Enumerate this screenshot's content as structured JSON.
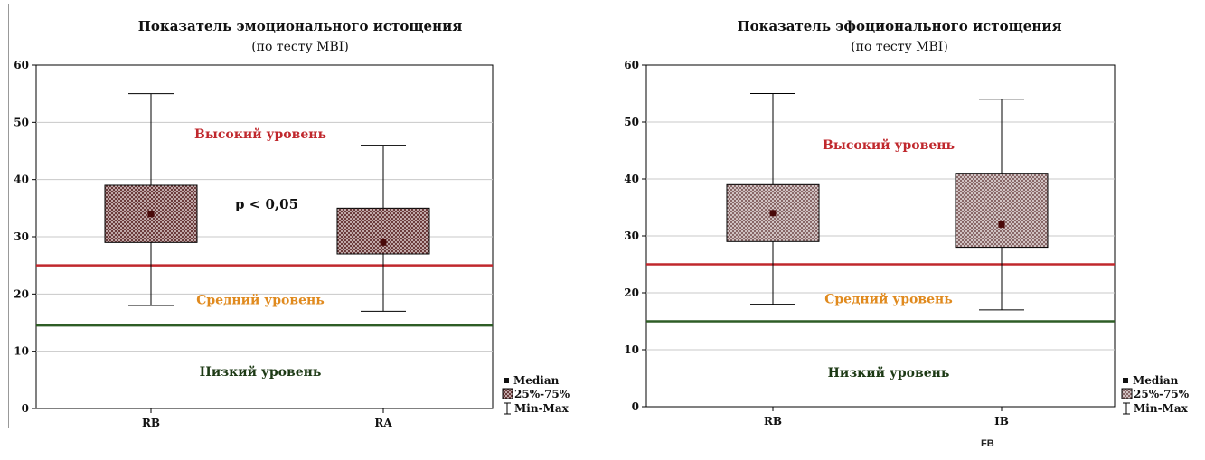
{
  "chart_data": [
    {
      "type": "boxplot",
      "title": "Показатель эмоционального истощения",
      "subtitle": "(по тесту MBI)",
      "categories": [
        "RB",
        "RA"
      ],
      "boxes": [
        {
          "category": "RB",
          "min": 18,
          "q1": 29,
          "median": 34,
          "q3": 39,
          "max": 55
        },
        {
          "category": "RA",
          "min": 17,
          "q1": 27,
          "median": 29,
          "q3": 35,
          "max": 46
        }
      ],
      "ylim": [
        0,
        60
      ],
      "yticks": [
        0,
        10,
        20,
        30,
        40,
        50,
        60
      ],
      "reference_lines": [
        {
          "y": 25,
          "color": "#c0282d"
        },
        {
          "y": 14.5,
          "color": "#2e5d26"
        }
      ],
      "zone_labels": [
        {
          "text": "Высокий уровень",
          "y": 48,
          "color": "#c0282d"
        },
        {
          "text": "Средний уровень",
          "y": 19,
          "color": "#e08a1e"
        },
        {
          "text": "Низкий уровень",
          "y": 6.5,
          "color": "#1d3a15"
        }
      ],
      "annotation": "p < 0,05",
      "legend": [
        "Median",
        "25%-75%",
        "Min-Max"
      ],
      "grid": true
    },
    {
      "type": "boxplot",
      "title": "Показатель эфоционального истощения",
      "subtitle": "(по тесту MBI)",
      "categories": [
        "RB",
        "IB"
      ],
      "boxes": [
        {
          "category": "RB",
          "min": 18,
          "q1": 29,
          "median": 34,
          "q3": 39,
          "max": 55
        },
        {
          "category": "IB",
          "min": 17,
          "q1": 28,
          "median": 32,
          "q3": 41,
          "max": 54
        }
      ],
      "ylim": [
        0,
        60
      ],
      "yticks": [
        0,
        10,
        20,
        30,
        40,
        50,
        60
      ],
      "reference_lines": [
        {
          "y": 25,
          "color": "#c0282d"
        },
        {
          "y": 15,
          "color": "#2e5d26"
        }
      ],
      "zone_labels": [
        {
          "text": "Высокий уровень",
          "y": 46,
          "color": "#c0282d"
        },
        {
          "text": "Средний уровень",
          "y": 19,
          "color": "#e08a1e"
        },
        {
          "text": "Низкий уровень",
          "y": 6,
          "color": "#1d3a15"
        }
      ],
      "legend": [
        "Median",
        "25%-75%",
        "Min-Max"
      ],
      "grid": true
    }
  ],
  "footer_label": "FB"
}
